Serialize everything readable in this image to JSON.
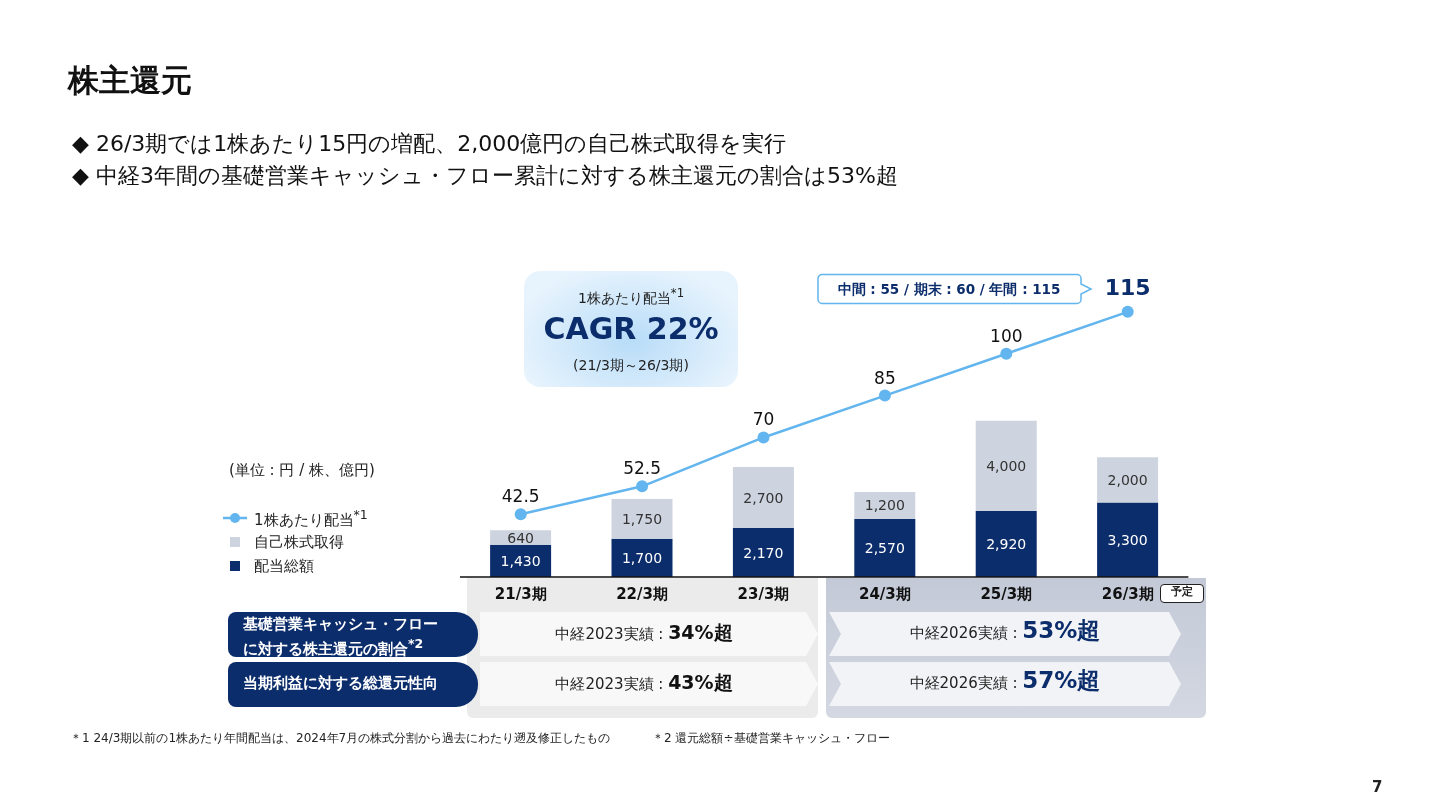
{
  "chart_data": {
    "type": "bar",
    "title": "株主還元",
    "subtitle": "◆ 26/3期では1株あたり15円の増配、2,000億円の自己株式取得を実行\n◆ 中経3年間の基礎営業キャッシュ・フロー累計に対する株主還元の割合は53%超",
    "categories": [
      "21/3期",
      "22/3期",
      "23/3期",
      "24/3期",
      "25/3期",
      "26/3期"
    ],
    "stacked": true,
    "series": [
      {
        "name": "配当総額",
        "color": "#0c2d6b",
        "values": [
          1430,
          1700,
          2170,
          2570,
          2920,
          3300
        ],
        "value_labels": [
          "1,430",
          "1,700",
          "2,170",
          "2,570",
          "2,920",
          "3,300"
        ]
      },
      {
        "name": "自己株式取得",
        "color": "#cdd3df",
        "values": [
          640,
          1750,
          2700,
          1200,
          4000,
          2000
        ],
        "value_labels": [
          "640",
          "1,750",
          "2,700",
          "1,200",
          "4,000",
          "2,000"
        ]
      },
      {
        "name": "1株あたり配当$^{*1}$",
        "type": "line",
        "axis": "y2",
        "color": "#62b5ee",
        "values": [
          42.5,
          52.5,
          70,
          85,
          100,
          115
        ],
        "value_labels": [
          "42.5",
          "52.5",
          "70",
          "85",
          "100",
          "115"
        ]
      }
    ],
    "ylim": [
      0,
      13600
    ],
    "y2lim": [
      20,
      130
    ],
    "tick_labels": "x",
    "legend": "left",
    "marker": "circle",
    "line_style": "solid",
    "annotations": [
      "(単位 : 円 / 株、億円)",
      "1株あたり配当$^{*1}$",
      "CAGR 22%",
      "(21/3期～26/3期)",
      "中間 : 55 / 期末 : 60 / 年間 : 115",
      "予定",
      "基礎営業キャッシュ・フローに対する株主還元の割合$^{*2}$",
      "当期利益に対する総還元性向",
      "中経2023実績 : 34%超",
      "中経2026実績 : 53%超",
      "中経2023実績 : 43%超",
      "中経2026実績 : 57%超",
      "＊1 24/3期以前の1株あたり年間配当は、2024年7月の株式分割から過去にわたり遡及修正したもの",
      "＊2 還元総額÷基礎営業キャッシュ・フロー",
      "7"
    ]
  }
}
